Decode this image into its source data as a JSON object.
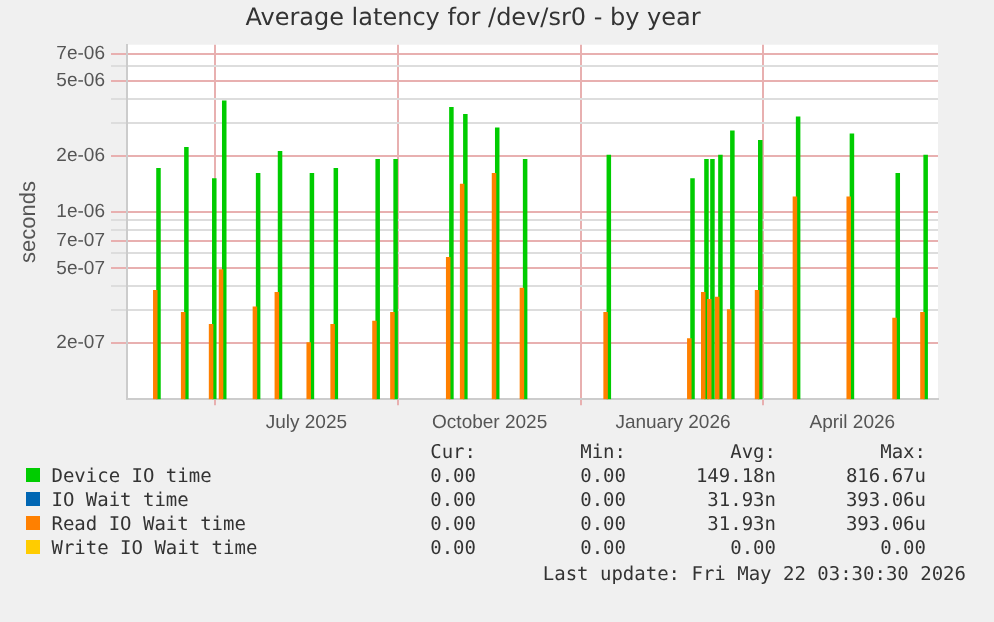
{
  "chart_data": {
    "type": "bar",
    "title": "Average latency for /dev/sr0 - by year",
    "ylabel": "seconds",
    "log": true,
    "grid": true,
    "legend": "bottom",
    "x": [
      "2025-04-17",
      "2025-05-01",
      "2025-05-15",
      "2025-05-20",
      "2025-06-06",
      "2025-06-17",
      "2025-07-03",
      "2025-07-15",
      "2025-08-05",
      "2025-08-14",
      "2025-09-11",
      "2025-09-18",
      "2025-10-04",
      "2025-10-18",
      "2025-11-29",
      "2026-01-10",
      "2026-01-17",
      "2026-01-20",
      "2026-01-24",
      "2026-01-30",
      "2026-02-13",
      "2026-03-04",
      "2026-03-31",
      "2026-04-23",
      "2026-05-07"
    ],
    "xlim": [
      "2025-04-02",
      "2026-05-14"
    ],
    "xticks": [
      {
        "value": "2025-07-01",
        "label": "July 2025"
      },
      {
        "value": "2025-10-01",
        "label": "October 2025"
      },
      {
        "value": "2026-01-01",
        "label": "January 2026"
      },
      {
        "value": "2026-04-01",
        "label": "April 2026"
      }
    ],
    "ylim": [
      1e-07,
      7.8e-06
    ],
    "yticks": [
      {
        "value": 2e-07,
        "label": "2e-07"
      },
      {
        "value": 3e-07,
        "label": null
      },
      {
        "value": 4e-07,
        "label": null
      },
      {
        "value": 5e-07,
        "label": "5e-07"
      },
      {
        "value": 6e-07,
        "label": null
      },
      {
        "value": 7e-07,
        "label": "7e-07"
      },
      {
        "value": 8e-07,
        "label": null
      },
      {
        "value": 9e-07,
        "label": null
      },
      {
        "value": 1e-06,
        "label": "1e-06"
      },
      {
        "value": 2e-06,
        "label": "2e-06"
      },
      {
        "value": 3e-06,
        "label": null
      },
      {
        "value": 4e-06,
        "label": null
      },
      {
        "value": 5e-06,
        "label": "5e-06"
      },
      {
        "value": 6e-06,
        "label": null
      },
      {
        "value": 7e-06,
        "label": "7e-06"
      }
    ],
    "series": [
      {
        "name": "Device IO time",
        "color": "#00cc00",
        "values": [
          1.7e-06,
          2.2e-06,
          1.5e-06,
          3.9e-06,
          1.6e-06,
          2.1e-06,
          1.6e-06,
          1.7e-06,
          1.9e-06,
          1.9e-06,
          3.6e-06,
          3.3e-06,
          2.8e-06,
          1.9e-06,
          2e-06,
          1.5e-06,
          1.9e-06,
          1.9e-06,
          2e-06,
          2.7e-06,
          2.4e-06,
          3.2e-06,
          2.6e-06,
          1.6e-06,
          2e-06
        ]
      },
      {
        "name": "IO Wait time",
        "color": "#0066b3",
        "values": [
          null,
          null,
          null,
          null,
          null,
          null,
          null,
          null,
          null,
          null,
          null,
          null,
          null,
          null,
          null,
          null,
          null,
          null,
          null,
          null,
          null,
          null,
          null,
          null,
          null
        ]
      },
      {
        "name": "Read IO Wait time",
        "color": "#ff8000",
        "values": [
          3.8e-07,
          2.9e-07,
          2.5e-07,
          4.9e-07,
          3.1e-07,
          3.7e-07,
          2e-07,
          2.5e-07,
          2.6e-07,
          2.9e-07,
          5.7e-07,
          1.4e-06,
          1.6e-06,
          3.9e-07,
          2.9e-07,
          2.1e-07,
          3.7e-07,
          3.4e-07,
          3.5e-07,
          3e-07,
          3.8e-07,
          1.2e-06,
          1.2e-06,
          2.7e-07,
          2.9e-07
        ]
      },
      {
        "name": "Write IO Wait time",
        "color": "#ffcc00",
        "values": [
          null,
          null,
          null,
          null,
          null,
          null,
          null,
          null,
          null,
          null,
          null,
          null,
          null,
          null,
          null,
          null,
          null,
          null,
          null,
          null,
          null,
          null,
          null,
          null,
          null
        ]
      }
    ],
    "annotations": [
      "Cur:",
      "Min:",
      "Avg:",
      "Max:",
      "0.00",
      "0.00",
      "149.18n",
      "816.67u",
      "0.00",
      "0.00",
      "31.93n",
      "393.06u",
      "0.00",
      "0.00",
      "31.93n",
      "393.06u",
      "0.00",
      "0.00",
      "0.00",
      "0.00",
      "Last update: Fri May 22 03:30:30 2026"
    ]
  }
}
